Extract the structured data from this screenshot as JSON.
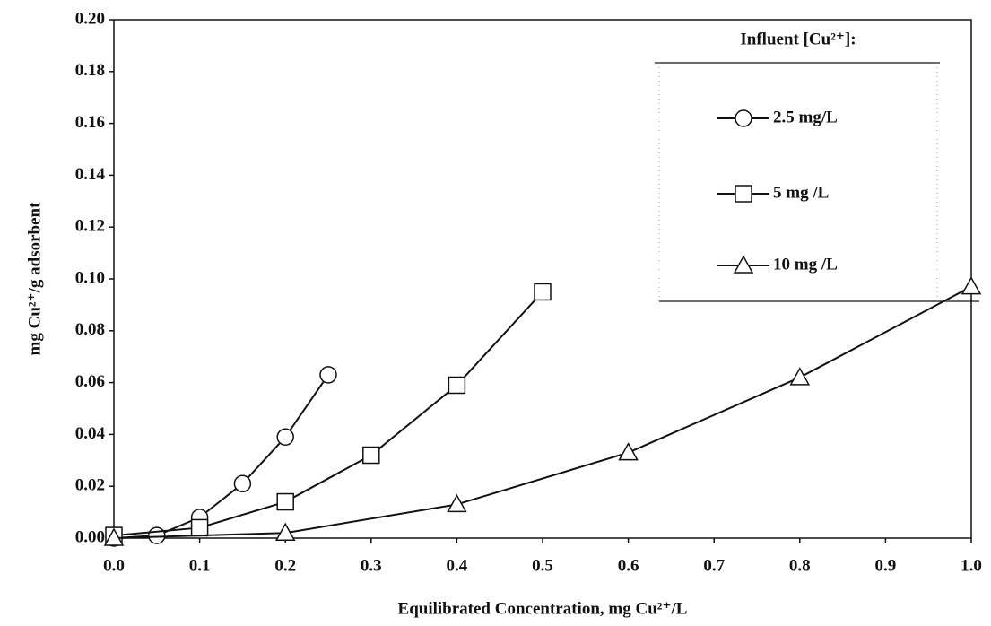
{
  "chart_data": {
    "type": "line",
    "x_label": "Equilibrated Concentration,  mg Cu²⁺/L",
    "y_label": "mg Cu²⁺/g adsorbent",
    "legend_title": "Influent [Cu²⁺]:",
    "legend": "upper right",
    "xlim": [
      0,
      1.0
    ],
    "xticks": [
      {
        "value": 0,
        "label": "0.0"
      },
      0.1,
      0.2,
      0.3,
      0.4,
      0.5,
      0.6,
      0.7,
      0.8,
      0.9,
      {
        "value": 1,
        "label": "1.0"
      }
    ],
    "ylim": [
      0,
      0.2
    ],
    "yticks": [
      {
        "value": 0,
        "label": "0.00"
      },
      {
        "value": 0.02,
        "label": "0.02"
      },
      {
        "value": 0.04,
        "label": "0.04"
      },
      {
        "value": 0.06,
        "label": "0.06"
      },
      {
        "value": 0.08,
        "label": "0.08"
      },
      {
        "value": 0.1,
        "label": "0.10"
      },
      {
        "value": 0.12,
        "label": "0.12"
      },
      {
        "value": 0.14,
        "label": "0.14"
      },
      {
        "value": 0.16,
        "label": "0.16"
      },
      {
        "value": 0.18,
        "label": "0.18"
      },
      {
        "value": 0.2,
        "label": "0.20"
      }
    ],
    "series": [
      {
        "name": "2.5 mg/L",
        "color": "#111111",
        "marker": "circle",
        "x": [
          0,
          0.05,
          0.1,
          0.15,
          0.2,
          0.25
        ],
        "values": [
          0,
          0.001,
          0.008,
          0.021,
          0.039,
          0.063
        ]
      },
      {
        "name": "5 mg /L",
        "color": "#111111",
        "marker": "square",
        "x": [
          0,
          0.1,
          0.2,
          0.3,
          0.4,
          0.5
        ],
        "values": [
          0.001,
          0.004,
          0.014,
          0.032,
          0.059,
          0.095
        ]
      },
      {
        "name": "10 mg /L",
        "color": "#111111",
        "marker": "triangle",
        "x": [
          0,
          0.2,
          0.4,
          0.6,
          0.8,
          1.0
        ],
        "values": [
          0,
          0.002,
          0.013,
          0.033,
          0.062,
          0.097
        ]
      }
    ]
  }
}
